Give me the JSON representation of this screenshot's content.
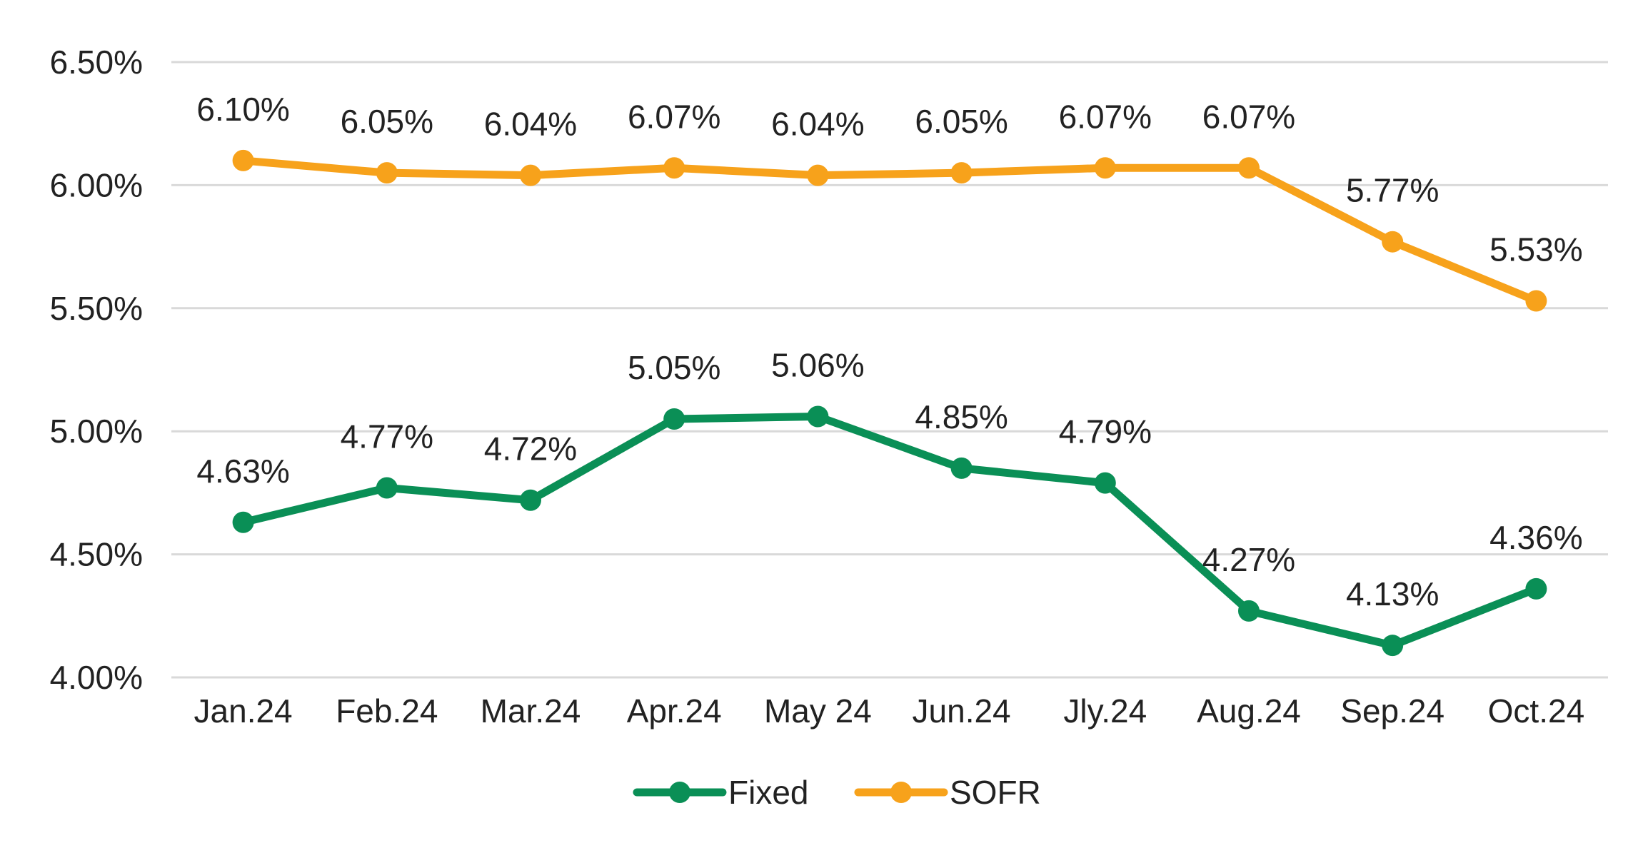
{
  "chart_data": {
    "type": "line",
    "title": "",
    "xlabel": "",
    "ylabel": "",
    "categories": [
      "Jan.24",
      "Feb.24",
      "Mar.24",
      "Apr.24",
      "May 24",
      "Jun.24",
      "Jly.24",
      "Aug.24",
      "Sep.24",
      "Oct.24"
    ],
    "y_ticks": [
      "4.00%",
      "4.50%",
      "5.00%",
      "5.50%",
      "6.00%",
      "6.50%"
    ],
    "ylim": [
      4.0,
      6.5
    ],
    "grid": true,
    "legend_position": "bottom",
    "series": [
      {
        "name": "Fixed",
        "color": "#0a8f56",
        "values": [
          4.63,
          4.77,
          4.72,
          5.05,
          5.06,
          4.85,
          4.79,
          4.27,
          4.13,
          4.36
        ],
        "labels": [
          "4.63%",
          "4.77%",
          "4.72%",
          "5.05%",
          "5.06%",
          "4.85%",
          "4.79%",
          "4.27%",
          "4.13%",
          "4.36%"
        ]
      },
      {
        "name": "SOFR",
        "color": "#f7a21b",
        "values": [
          6.1,
          6.05,
          6.04,
          6.07,
          6.04,
          6.05,
          6.07,
          6.07,
          5.77,
          5.53
        ],
        "labels": [
          "6.10%",
          "6.05%",
          "6.04%",
          "6.07%",
          "6.04%",
          "6.05%",
          "6.07%",
          "6.07%",
          "5.77%",
          "5.53%"
        ]
      }
    ]
  }
}
